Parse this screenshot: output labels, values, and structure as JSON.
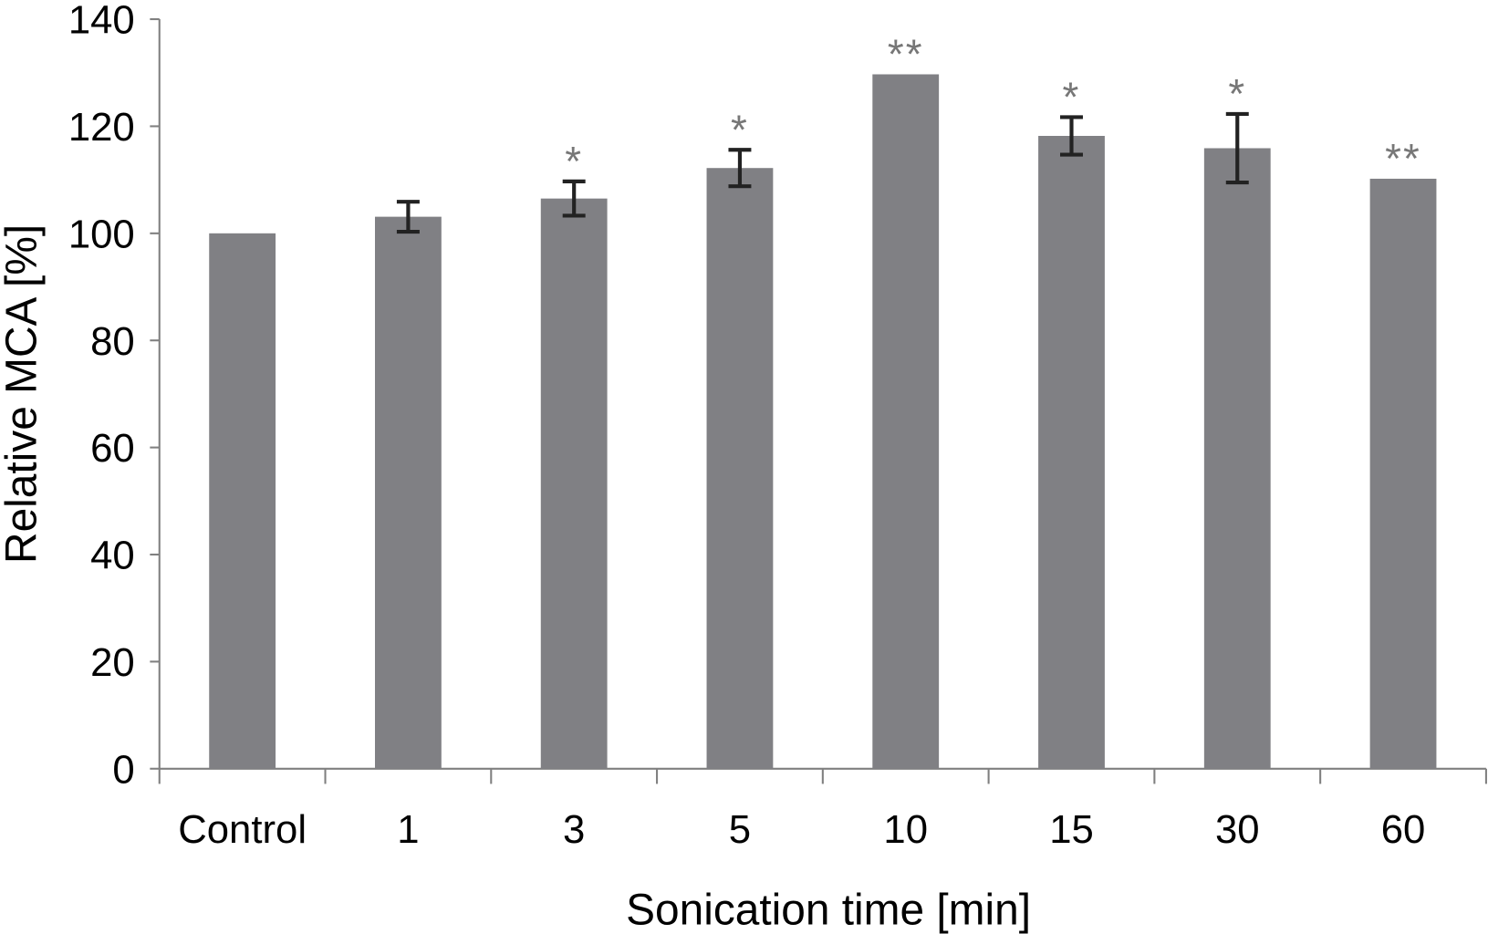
{
  "chart_data": {
    "type": "bar",
    "title": "",
    "xlabel": "Sonication time [min]",
    "ylabel": "Relative MCA [%]",
    "ylim": [
      0,
      140
    ],
    "yticks": [
      0,
      20,
      40,
      60,
      80,
      100,
      120,
      140
    ],
    "categories": [
      "Control",
      "1",
      "3",
      "5",
      "10",
      "15",
      "30",
      "60"
    ],
    "values": [
      100,
      103.1,
      106.5,
      112.2,
      129.7,
      118.2,
      115.9,
      110.2
    ],
    "errors": [
      0,
      2.8,
      3.2,
      3.4,
      0,
      3.5,
      6.4,
      0
    ],
    "annotations": [
      "",
      "",
      "*",
      "*",
      "**",
      "*",
      "*",
      "**"
    ],
    "bar_color": "#808084",
    "grid": false
  }
}
